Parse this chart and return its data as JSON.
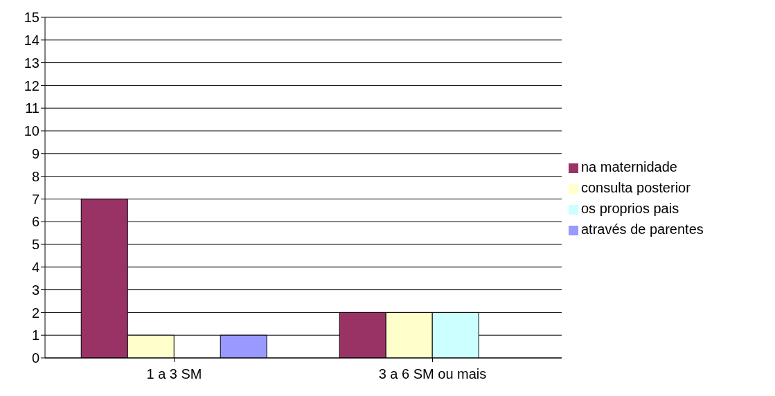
{
  "chart_data": {
    "type": "bar",
    "categories": [
      "1 a 3 SM",
      "3 a 6 SM ou mais"
    ],
    "series": [
      {
        "name": "na maternidade",
        "color": "#993366",
        "values": [
          7,
          2
        ]
      },
      {
        "name": "consulta posterior",
        "color": "#ffffcc",
        "values": [
          1,
          2
        ]
      },
      {
        "name": "os proprios pais",
        "color": "#ccffff",
        "values": [
          0,
          2
        ]
      },
      {
        "name": "através de parentes",
        "color": "#9999ff",
        "values": [
          1,
          0
        ]
      }
    ],
    "ylim": [
      0,
      15
    ],
    "yticks": [
      0,
      1,
      2,
      3,
      4,
      5,
      6,
      7,
      8,
      9,
      10,
      11,
      12,
      13,
      14,
      15
    ],
    "grid": "y",
    "legend": "right"
  }
}
